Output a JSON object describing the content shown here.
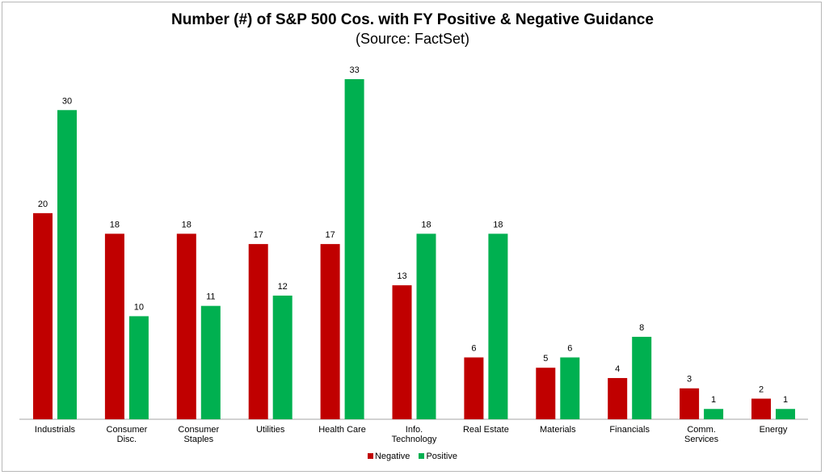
{
  "chart_data": {
    "type": "bar",
    "title": "Number (#) of S&P 500 Cos. with FY Positive & Negative Guidance",
    "subtitle": "(Source: FactSet)",
    "categories": [
      [
        "Industrials"
      ],
      [
        "Consumer",
        "Disc."
      ],
      [
        "Consumer",
        "Staples"
      ],
      [
        "Utilities"
      ],
      [
        "Health Care"
      ],
      [
        "Info.",
        "Technology"
      ],
      [
        "Real Estate"
      ],
      [
        "Materials"
      ],
      [
        "Financials"
      ],
      [
        "Comm.",
        "Services"
      ],
      [
        "Energy"
      ]
    ],
    "series": [
      {
        "name": "Negative",
        "color": "#c00000",
        "values": [
          20,
          18,
          18,
          17,
          17,
          13,
          6,
          5,
          4,
          3,
          2
        ]
      },
      {
        "name": "Positive",
        "color": "#00b050",
        "values": [
          30,
          10,
          11,
          12,
          33,
          18,
          18,
          6,
          8,
          1,
          1
        ]
      }
    ],
    "ylim": [
      0,
      33
    ],
    "grid": false,
    "legend": "bottom"
  }
}
